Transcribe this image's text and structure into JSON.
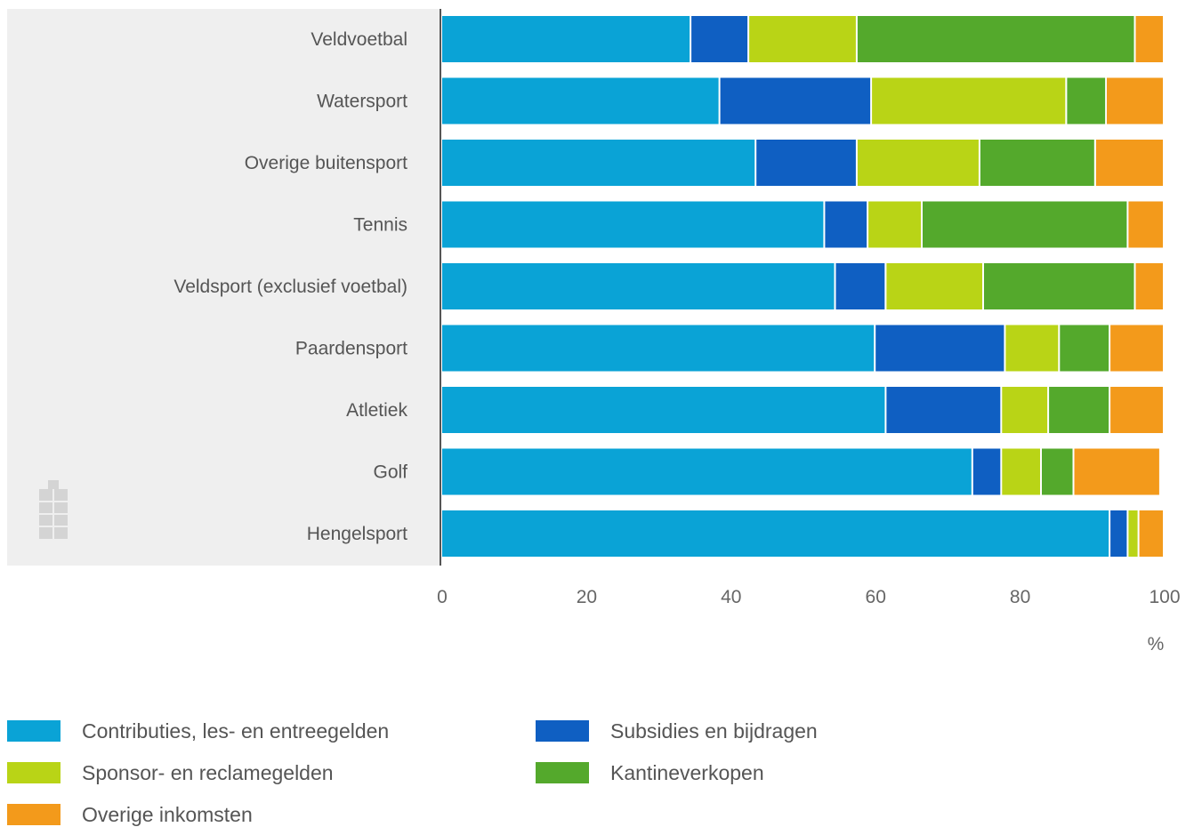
{
  "chart_data": {
    "type": "bar",
    "orientation": "horizontal",
    "stacked": true,
    "categories": [
      "Veldvoetbal",
      "Watersport",
      "Overige buitensport",
      "Tennis",
      "Veldsport (exclusief voetbal)",
      "Paardensport",
      "Atletiek",
      "Golf",
      "Hengelsport"
    ],
    "series": [
      {
        "name": "Contributies, les- en entreegelden",
        "color": "#0aa3d6",
        "values": [
          34.5,
          38.5,
          43.5,
          53,
          54.5,
          60,
          61.5,
          73.5,
          92.5
        ]
      },
      {
        "name": "Subsidies en bijdragen",
        "color": "#0f5fc2",
        "values": [
          8,
          21,
          14,
          6,
          7,
          18,
          16,
          4,
          2.5
        ]
      },
      {
        "name": "Sponsor- en reclamegelden",
        "color": "#b9d416",
        "values": [
          15,
          27,
          17,
          7.5,
          13.5,
          7.5,
          6.5,
          5.5,
          1.5
        ]
      },
      {
        "name": "Kantineverkopen",
        "color": "#54a92c",
        "values": [
          38.5,
          5.5,
          16,
          28.5,
          21,
          7,
          8.5,
          4.5,
          0
        ]
      },
      {
        "name": "Overige inkomsten",
        "color": "#f39a1b",
        "values": [
          4,
          8,
          9.5,
          5,
          4,
          7.5,
          7.5,
          12,
          3.5
        ]
      }
    ],
    "x_ticks": [
      "0",
      "20",
      "40",
      "60",
      "80",
      "100"
    ],
    "xlim": [
      0,
      100
    ],
    "x_unit": "%",
    "grid": false,
    "legend_position": "bottom",
    "logo_icon": "cbs-logo-icon"
  }
}
